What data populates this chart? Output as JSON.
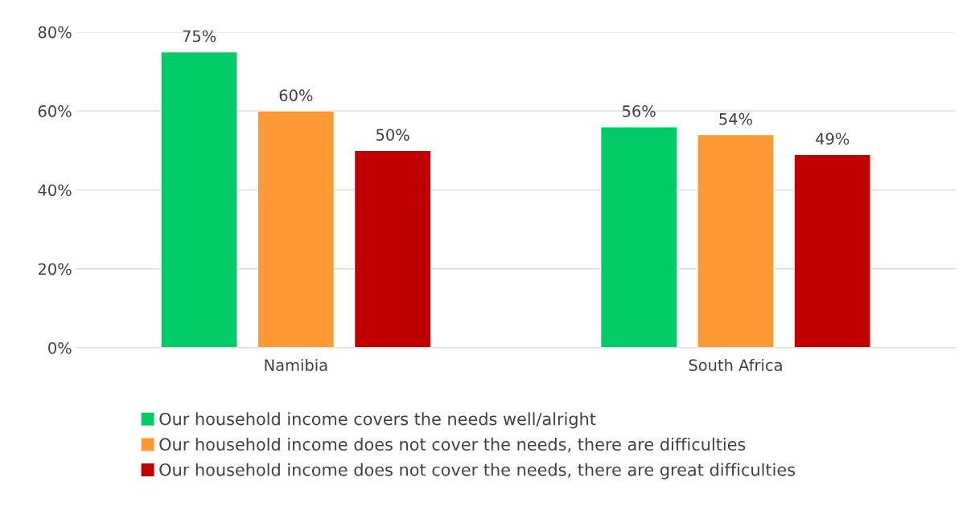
{
  "chart_data": {
    "type": "bar",
    "categories": [
      "Namibia",
      "South Africa"
    ],
    "series": [
      {
        "name": "Our household income covers the needs well/alright",
        "color": "#00cc66",
        "values": [
          75,
          56
        ],
        "value_labels": [
          "75%",
          "56%"
        ]
      },
      {
        "name": "Our household income does not cover the needs, there are difficulties",
        "color": "#ff9933",
        "values": [
          60,
          54
        ],
        "value_labels": [
          "60%",
          "54%"
        ]
      },
      {
        "name": "Our household income does not cover the needs, there are great difficulties",
        "color": "#c00000",
        "values": [
          50,
          49
        ],
        "value_labels": [
          "50%",
          "49%"
        ]
      }
    ],
    "ylim": [
      0,
      80
    ],
    "yticks": [
      {
        "value": 0,
        "label": "0%"
      },
      {
        "value": 20,
        "label": "20%"
      },
      {
        "value": 40,
        "label": "40%"
      },
      {
        "value": 60,
        "label": "60%"
      },
      {
        "value": 80,
        "label": "80%"
      }
    ],
    "grid": "y",
    "legend": "bottom"
  }
}
